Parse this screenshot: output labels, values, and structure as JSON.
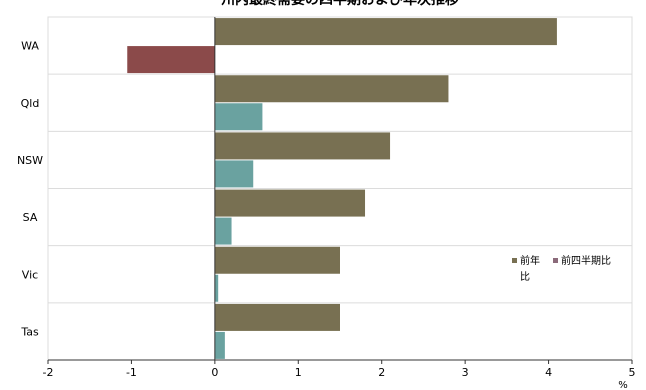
{
  "chart_data": {
    "type": "bar",
    "orientation": "horizontal",
    "title": "州内最終需要の四半期および年次推移",
    "categories": [
      "WA",
      "Qld",
      "NSW",
      "SA",
      "Vic",
      "Tas"
    ],
    "series": [
      {
        "name": "前年比",
        "color": "#787052",
        "values": [
          4.1,
          2.8,
          2.1,
          1.8,
          1.5,
          1.5
        ]
      },
      {
        "name": "前四半期比",
        "colors": [
          "#8b4a4a",
          "#6aa2a0",
          "#6aa2a0",
          "#6aa2a0",
          "#6aa2a0",
          "#6aa2a0"
        ],
        "values": [
          -1.05,
          0.57,
          0.46,
          0.2,
          0.04,
          0.12
        ]
      }
    ],
    "xlim": [
      -2,
      5
    ],
    "xticks": [
      "-2",
      "-1",
      "0",
      "1",
      "2",
      "3",
      "4",
      "5"
    ],
    "xunit": "%",
    "grid": true,
    "legend_position": "right",
    "legend_labels": [
      "前年\n比",
      "前四半期比"
    ],
    "legend_colors": [
      "#787052",
      "#8b6a7a"
    ]
  }
}
